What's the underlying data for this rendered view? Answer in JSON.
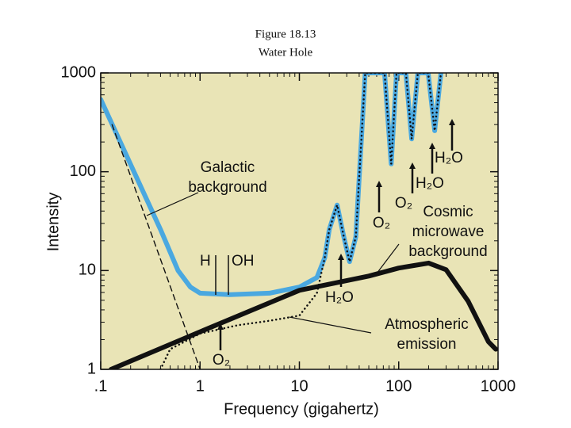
{
  "chart_data": {
    "type": "line",
    "title": "Figure 18.13",
    "subtitle": "Water Hole",
    "x_label": "Frequency (gigahertz)",
    "y_label": "Intensity",
    "log_x": true,
    "log_y": true,
    "xlim": [
      0.1,
      1000
    ],
    "ylim": [
      1,
      1000
    ],
    "xticks": [
      {
        "value": 0.1,
        "label": ".1"
      },
      1,
      10,
      100,
      1000
    ],
    "yticks": [
      1,
      10,
      100,
      1000
    ],
    "background": "#e9e4b6",
    "series": [
      {
        "color": "#4aa8e0",
        "style": "solid",
        "weight": "heavy",
        "x": [
          0.1,
          0.4,
          0.6,
          0.8,
          1,
          2,
          5,
          10,
          15,
          18,
          20,
          24,
          28,
          32,
          37,
          41,
          46,
          72,
          84,
          95,
          118,
          135,
          156,
          198,
          230,
          266
        ],
        "values": [
          540,
          26,
          10,
          6.8,
          5.9,
          5.7,
          5.9,
          6.8,
          8.5,
          13.5,
          26,
          46,
          22,
          12.3,
          22,
          136,
          1000,
          1000,
          120,
          1000,
          1000,
          215,
          1000,
          1000,
          260,
          1000
        ]
      },
      {
        "color": "#111111",
        "style": "dashed",
        "weight": "light",
        "x": [
          0.13,
          1
        ],
        "values": [
          300,
          1
        ]
      },
      {
        "color": "#111111",
        "style": "dotted",
        "weight": "light",
        "x": [
          0.4,
          0.5,
          1,
          2.4,
          5,
          10,
          15,
          18,
          20,
          24,
          28,
          32,
          37,
          41,
          46,
          72,
          84,
          95,
          118,
          135,
          156,
          198,
          230,
          266
        ],
        "values": [
          1,
          1.6,
          2.3,
          2.8,
          3.1,
          3.5,
          5.9,
          13.5,
          26,
          46,
          22,
          12.3,
          22,
          136,
          1000,
          1000,
          120,
          1000,
          1000,
          215,
          1000,
          1000,
          260,
          1000
        ]
      },
      {
        "color": "#111111",
        "style": "solid",
        "weight": "heavy",
        "x": [
          0.127,
          1,
          10,
          50,
          100,
          200,
          300,
          500,
          800,
          950
        ],
        "values": [
          1,
          2.4,
          6.3,
          8.8,
          10.6,
          11.9,
          10.2,
          4.9,
          1.9,
          1.6
        ]
      }
    ],
    "annotations": [
      {
        "lines": [
          "Galactic",
          "background"
        ]
      },
      {
        "lines": [
          "Cosmic",
          "microwave",
          "background"
        ]
      },
      {
        "lines": [
          "Atmospheric",
          "emission"
        ]
      }
    ],
    "markers": [
      "H",
      "OH",
      "O₂",
      "H₂O",
      "O₂",
      "O₂",
      "H₂O",
      "H₂O"
    ]
  }
}
